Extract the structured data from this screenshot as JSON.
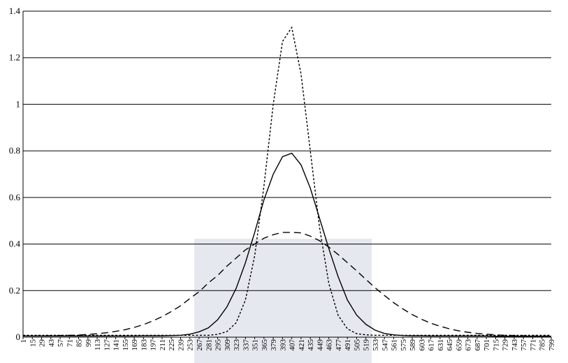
{
  "chart_data": {
    "type": "line",
    "categories": [
      "1",
      "15",
      "29",
      "43",
      "57",
      "71",
      "85",
      "99",
      "113",
      "127",
      "141",
      "155",
      "169",
      "183",
      "197",
      "211",
      "225",
      "239",
      "253",
      "267",
      "281",
      "295",
      "309",
      "323",
      "337",
      "351",
      "365",
      "379",
      "393",
      "407",
      "421",
      "435",
      "449",
      "463",
      "477",
      "491",
      "505",
      "519",
      "533",
      "547",
      "561",
      "575",
      "589",
      "603",
      "617",
      "631",
      "645",
      "659",
      "673",
      "687",
      "701",
      "715",
      "729",
      "743",
      "757",
      "771",
      "785",
      "799"
    ],
    "series": [
      {
        "color": "#000000",
        "dash": "dotted",
        "values": [
          0.008,
          0.008,
          0.008,
          0.008,
          0.008,
          0.008,
          0.008,
          0.008,
          0.008,
          0.008,
          0.008,
          0.008,
          0.008,
          0.008,
          0.008,
          0.008,
          0.008,
          0.008,
          0.008,
          0.008,
          0.008,
          0.012,
          0.024,
          0.062,
          0.16,
          0.35,
          0.65,
          1.0,
          1.27,
          1.33,
          1.13,
          0.8,
          0.47,
          0.23,
          0.094,
          0.036,
          0.015,
          0.01,
          0.008,
          0.008,
          0.008,
          0.008,
          0.008,
          0.008,
          0.008,
          0.008,
          0.008,
          0.008,
          0.008,
          0.008,
          0.008,
          0.008,
          0.008,
          0.008,
          0.008,
          0.008,
          0.008,
          0.008
        ]
      },
      {
        "color": "#000000",
        "dash": "solid",
        "values": [
          0.005,
          0.005,
          0.005,
          0.005,
          0.005,
          0.005,
          0.005,
          0.005,
          0.005,
          0.005,
          0.005,
          0.005,
          0.005,
          0.006,
          0.006,
          0.006,
          0.007,
          0.008,
          0.013,
          0.023,
          0.04,
          0.075,
          0.13,
          0.21,
          0.32,
          0.45,
          0.59,
          0.7,
          0.775,
          0.79,
          0.74,
          0.64,
          0.51,
          0.38,
          0.26,
          0.16,
          0.095,
          0.055,
          0.03,
          0.016,
          0.01,
          0.007,
          0.006,
          0.006,
          0.005,
          0.005,
          0.005,
          0.005,
          0.005,
          0.005,
          0.005,
          0.004,
          0.004,
          0.004,
          0.004,
          0.004,
          0.004,
          0.004
        ]
      },
      {
        "color": "#000000",
        "dash": "dashed",
        "values": [
          0.005,
          0.005,
          0.006,
          0.006,
          0.007,
          0.008,
          0.009,
          0.012,
          0.015,
          0.019,
          0.025,
          0.032,
          0.042,
          0.054,
          0.07,
          0.088,
          0.11,
          0.135,
          0.166,
          0.195,
          0.233,
          0.265,
          0.305,
          0.34,
          0.375,
          0.4,
          0.425,
          0.44,
          0.45,
          0.45,
          0.448,
          0.434,
          0.414,
          0.387,
          0.355,
          0.32,
          0.285,
          0.248,
          0.212,
          0.179,
          0.148,
          0.121,
          0.097,
          0.077,
          0.06,
          0.047,
          0.036,
          0.027,
          0.021,
          0.016,
          0.013,
          0.01,
          0.008,
          0.007,
          0.006,
          0.005,
          0.005,
          0.005
        ]
      }
    ],
    "ylim": [
      0,
      1.4
    ],
    "yticks": [
      0,
      0.2,
      0.4,
      0.6,
      0.8,
      1,
      1.2,
      1.4
    ],
    "grid": true
  }
}
